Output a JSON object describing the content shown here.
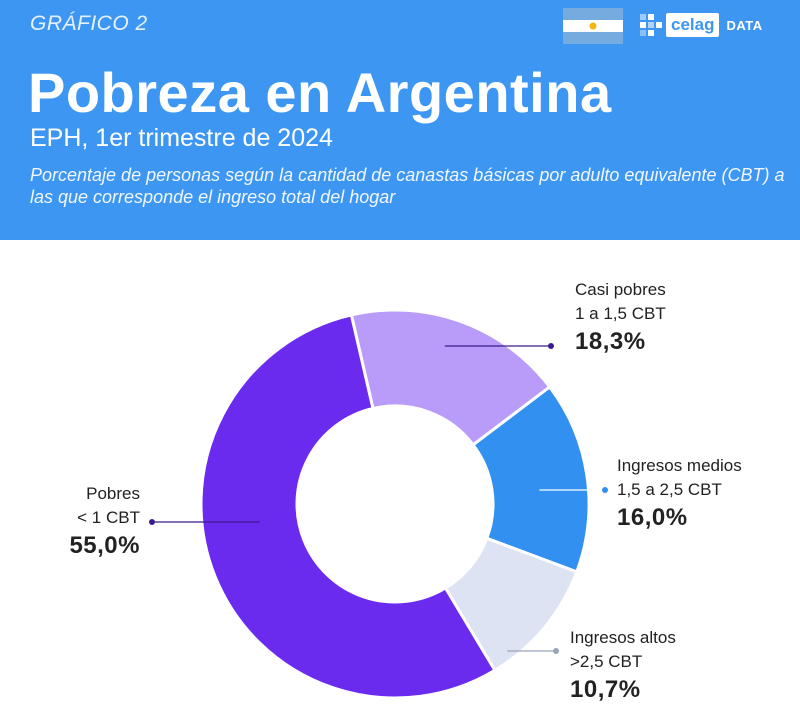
{
  "header": {
    "chart_label": "GRÁFICO 2",
    "title": "Pobreza en Argentina",
    "subtitle": "EPH, 1er trimestre de 2024",
    "description": "Porcentaje de personas según la cantidad de canastas básicas por adulto equivalente (CBT) a las que corresponde el ingreso total del hogar",
    "logo_text": "celag",
    "logo_suffix": "DATA"
  },
  "colors": {
    "header_bg": "#3d97f2",
    "pobres": "#6b2bef",
    "casi_pobres": "#b99cf9",
    "ingresos_medios": "#3190f0",
    "ingresos_altos": "#dde3f2"
  },
  "chart_data": {
    "type": "pie",
    "donut": true,
    "title": "Pobreza en Argentina",
    "slices": [
      {
        "name": "Casi pobres",
        "range": "1 a 1,5 CBT",
        "value": 18.3,
        "label": "18,3%",
        "color": "#b99cf9"
      },
      {
        "name": "Ingresos medios",
        "range": "1,5 a 2,5 CBT",
        "value": 16.0,
        "label": "16,0%",
        "color": "#3190f0"
      },
      {
        "name": "Ingresos altos",
        "range": ">2,5 CBT",
        "value": 10.7,
        "label": "10,7%",
        "color": "#dde3f2"
      },
      {
        "name": "Pobres",
        "range": "< 1 CBT",
        "value": 55.0,
        "label": "55,0%",
        "color": "#6b2bef"
      }
    ]
  }
}
